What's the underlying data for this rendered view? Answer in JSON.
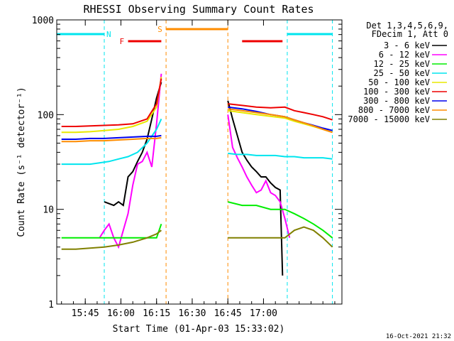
{
  "chart_data": {
    "type": "line",
    "title": "RHESSI Observing Summary Count Rates",
    "xlabel": "Start Time (01-Apr-03 15:33:02)",
    "ylabel": "Count Rate (s⁻¹ detector⁻¹)",
    "y_scale": "log",
    "ylim": [
      1,
      1000
    ],
    "xlim_minutes": [
      0,
      120
    ],
    "x_ticks": [
      {
        "label": "15:45",
        "t": 12
      },
      {
        "label": "16:00",
        "t": 27
      },
      {
        "label": "16:15",
        "t": 42
      },
      {
        "label": "16:30",
        "t": 57
      },
      {
        "label": "16:45",
        "t": 72
      },
      {
        "label": "17:00",
        "t": 87
      }
    ],
    "y_ticks": [
      {
        "label": "1",
        "v": 1
      },
      {
        "label": "10",
        "v": 10
      },
      {
        "label": "100",
        "v": 100
      },
      {
        "label": "1000",
        "v": 1000
      }
    ],
    "legend_header": [
      "Det 1,3,4,5,6,9,",
      "FDecim 1, Att 0"
    ],
    "legend_position": "right",
    "footer_date": "16-Oct-2021 21:32",
    "flags": [
      {
        "label": "N",
        "color": "#00e5ee",
        "segments": [
          [
            0,
            20
          ],
          [
            97,
            116
          ]
        ],
        "boundaries": [
          20,
          97,
          116
        ],
        "style": "dashed"
      },
      {
        "label": "F",
        "color": "#ee0000",
        "segments": [
          [
            30,
            44
          ],
          [
            78,
            95
          ]
        ]
      },
      {
        "label": "S",
        "color": "#ff8c00",
        "segments": [
          [
            46,
            72
          ]
        ],
        "boundaries": [
          46,
          72
        ],
        "style": "dashed"
      }
    ],
    "series": [
      {
        "name": "3 - 6 keV",
        "color": "#000000",
        "x": [
          20,
          24,
          26,
          28,
          30,
          32,
          34,
          36,
          38,
          40,
          42,
          44,
          72,
          74,
          76,
          78,
          80,
          82,
          84,
          86,
          88,
          90,
          92,
          94,
          95
        ],
        "y": [
          12,
          11,
          12,
          11,
          22,
          25,
          32,
          40,
          55,
          90,
          150,
          220,
          140,
          90,
          60,
          40,
          33,
          28,
          25,
          22,
          22,
          19,
          17,
          16,
          2
        ]
      },
      {
        "name": "6 - 12 keV",
        "color": "#ff00ff",
        "x": [
          18,
          20,
          22,
          24,
          26,
          28,
          30,
          32,
          34,
          36,
          38,
          40,
          42,
          44,
          72,
          74,
          76,
          78,
          80,
          82,
          84,
          86,
          88,
          90,
          92,
          94,
          96,
          98
        ],
        "y": [
          5,
          6,
          7,
          5,
          4,
          6,
          9,
          18,
          30,
          32,
          40,
          28,
          80,
          270,
          100,
          45,
          35,
          28,
          22,
          18,
          15,
          16,
          20,
          15,
          14,
          12,
          8,
          5
        ]
      },
      {
        "name": "12 - 25 keV",
        "color": "#00ee00",
        "x": [
          2,
          8,
          14,
          20,
          26,
          32,
          38,
          42,
          44,
          72,
          78,
          84,
          90,
          96,
          100,
          104,
          108,
          112,
          116
        ],
        "y": [
          5,
          5,
          5,
          5,
          5,
          5,
          5,
          5,
          7,
          12,
          11,
          11,
          10,
          10,
          9,
          8,
          7,
          6,
          5
        ]
      },
      {
        "name": "25 - 50 keV",
        "color": "#00e5ee",
        "x": [
          2,
          6,
          10,
          14,
          18,
          22,
          26,
          30,
          34,
          38,
          42,
          44,
          72,
          76,
          80,
          84,
          88,
          92,
          96,
          100,
          104,
          108,
          112,
          116
        ],
        "y": [
          30,
          30,
          30,
          30,
          31,
          32,
          34,
          36,
          40,
          50,
          70,
          90,
          39,
          38,
          38,
          37,
          37,
          37,
          36,
          36,
          35,
          35,
          35,
          34
        ]
      },
      {
        "name": "50 - 100 keV",
        "color": "#e8e800",
        "x": [
          2,
          8,
          14,
          20,
          26,
          32,
          38,
          42,
          44,
          72,
          78,
          84,
          90,
          96,
          100,
          104,
          108,
          112,
          116
        ],
        "y": [
          65,
          65,
          66,
          68,
          70,
          75,
          85,
          120,
          250,
          110,
          105,
          100,
          96,
          92,
          85,
          80,
          75,
          70,
          65
        ]
      },
      {
        "name": "100 - 300 keV",
        "color": "#ee0000",
        "x": [
          2,
          8,
          14,
          20,
          26,
          32,
          38,
          42,
          44,
          72,
          78,
          84,
          90,
          96,
          100,
          104,
          108,
          112,
          116
        ],
        "y": [
          75,
          75,
          76,
          77,
          78,
          80,
          90,
          130,
          240,
          130,
          125,
          120,
          118,
          120,
          110,
          105,
          100,
          95,
          88
        ]
      },
      {
        "name": "300 - 800 keV",
        "color": "#0000ee",
        "x": [
          2,
          8,
          14,
          20,
          26,
          32,
          38,
          42,
          44,
          72,
          78,
          84,
          90,
          96,
          100,
          104,
          108,
          112,
          116
        ],
        "y": [
          55,
          55,
          56,
          56,
          57,
          58,
          59,
          59,
          60,
          120,
          115,
          108,
          100,
          95,
          88,
          82,
          77,
          72,
          68
        ]
      },
      {
        "name": "800 - 7000 keV",
        "color": "#ff8c00",
        "x": [
          2,
          8,
          14,
          20,
          26,
          32,
          38,
          42,
          44,
          72,
          78,
          84,
          90,
          96,
          100,
          104,
          108,
          112,
          116
        ],
        "y": [
          52,
          52,
          53,
          53,
          54,
          55,
          56,
          56,
          57,
          115,
          110,
          105,
          100,
          95,
          88,
          82,
          76,
          70,
          65
        ]
      },
      {
        "name": "7000 - 15000 keV",
        "color": "#808000",
        "x": [
          2,
          8,
          14,
          20,
          26,
          32,
          38,
          42,
          44,
          72,
          78,
          84,
          90,
          96,
          100,
          104,
          108,
          112,
          116
        ],
        "y": [
          3.8,
          3.8,
          3.9,
          4,
          4.2,
          4.5,
          5,
          5.5,
          6,
          5,
          5,
          5,
          5,
          5,
          6,
          6.5,
          6,
          5,
          4
        ]
      }
    ]
  }
}
